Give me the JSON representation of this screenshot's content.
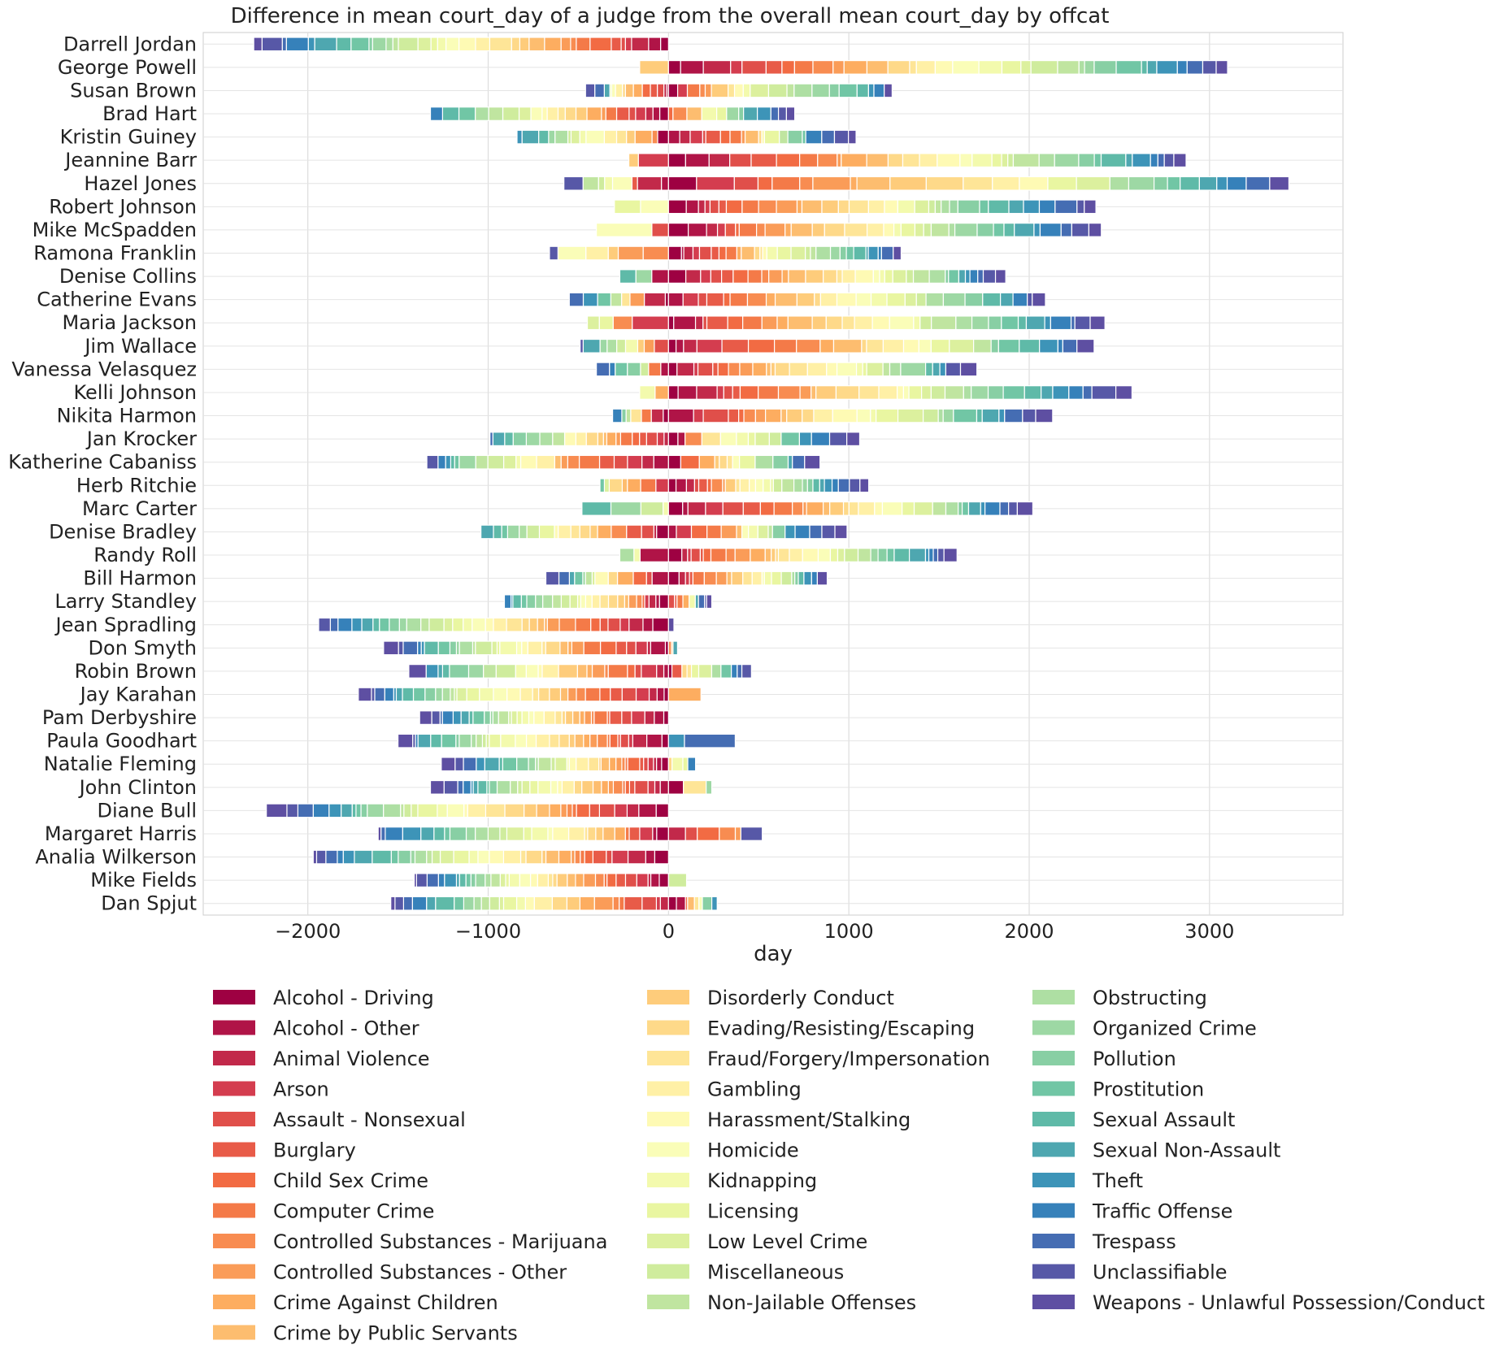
{
  "chart_data": {
    "type": "bar",
    "orientation": "horizontal",
    "stacked": "diverging",
    "title": "Difference in mean court_day of a judge from the overall mean court_day by offcat",
    "xlabel": "day",
    "ylabel": "",
    "xlim": [
      -2580,
      3740
    ],
    "xticks": [
      -2000,
      -1000,
      0,
      1000,
      2000,
      3000
    ],
    "xtick_labels": [
      "−2000",
      "−1000",
      "0",
      "1000",
      "2000",
      "3000"
    ],
    "grid": true,
    "legend_position": "bottom",
    "judges": [
      "Darrell Jordan",
      "George Powell",
      "Susan Brown",
      "Brad Hart",
      "Kristin Guiney",
      "Jeannine Barr",
      "Hazel Jones",
      "Robert Johnson",
      "Mike McSpadden",
      "Ramona Franklin",
      "Denise Collins",
      "Catherine Evans",
      "Maria Jackson",
      "Jim Wallace",
      "Vanessa Velasquez",
      "Kelli Johnson",
      "Nikita Harmon",
      "Jan Krocker",
      "Katherine Cabaniss",
      "Herb Ritchie",
      "Marc Carter",
      "Denise Bradley",
      "Randy Roll",
      "Bill Harmon",
      "Larry Standley",
      "Jean Spradling",
      "Don Smyth",
      "Robin Brown",
      "Jay Karahan",
      "Pam Derbyshire",
      "Paula Goodhart",
      "Natalie Fleming",
      "John Clinton",
      "Diane Bull",
      "Margaret Harris",
      "Analia Wilkerson",
      "Mike Fields",
      "Dan Spjut"
    ],
    "categories": [
      "Alcohol - Driving",
      "Alcohol - Other",
      "Animal Violence",
      "Arson",
      "Assault - Nonsexual",
      "Burglary",
      "Child Sex Crime",
      "Computer Crime",
      "Controlled Substances - Marijuana",
      "Controlled Substances - Other",
      "Crime Against Children",
      "Crime by Public Servants",
      "Disorderly Conduct",
      "Evading/Resisting/Escaping",
      "Fraud/Forgery/Impersonation",
      "Gambling",
      "Harassment/Stalking",
      "Homicide",
      "Kidnapping",
      "Licensing",
      "Low Level Crime",
      "Miscellaneous",
      "Non-Jailable Offenses",
      "Obstructing",
      "Organized Crime",
      "Pollution",
      "Prostitution",
      "Sexual Assault",
      "Sexual Non-Assault",
      "Theft",
      "Traffic Offense",
      "Trespass",
      "Unclassifiable",
      "Weapons - Unlawful Possession/Conduct"
    ],
    "colors": [
      "#9e0142",
      "#b01447",
      "#c2294a",
      "#d43d4f",
      "#e04f4a",
      "#e85b48",
      "#f26b43",
      "#f47a48",
      "#f88c51",
      "#fa9c58",
      "#fdad60",
      "#fdbd6f",
      "#fecc7b",
      "#fed989",
      "#fee597",
      "#fff0a6",
      "#fefab4",
      "#fafdb8",
      "#f3faad",
      "#e9f6a1",
      "#dcf09e",
      "#cfec9d",
      "#c0e5a0",
      "#aedfa3",
      "#9dd8a4",
      "#88cfa4",
      "#71c6a5",
      "#5fbaa8",
      "#4ea7b0",
      "#3d94b8",
      "#3681ba",
      "#456db3",
      "#5758a7",
      "#5e4fa2"
    ],
    "data_note": "Each judge's stacked total extent in days (negative part, positive part)",
    "series_totals": [
      {
        "judge": "Darrell Jordan",
        "neg": -2300,
        "pos": 50
      },
      {
        "judge": "George Powell",
        "neg": -160,
        "pos": 3100
      },
      {
        "judge": "Susan Brown",
        "neg": -460,
        "pos": 1240
      },
      {
        "judge": "Brad Hart",
        "neg": -1320,
        "pos": 700
      },
      {
        "judge": "Kristin Guiney",
        "neg": -840,
        "pos": 1040
      },
      {
        "judge": "Jeannine Barr",
        "neg": -220,
        "pos": 2870
      },
      {
        "judge": "Hazel Jones",
        "neg": -580,
        "pos": 3440
      },
      {
        "judge": "Robert Johnson",
        "neg": -300,
        "pos": 2370
      },
      {
        "judge": "Mike McSpadden",
        "neg": -400,
        "pos": 2400
      },
      {
        "judge": "Ramona Franklin",
        "neg": -660,
        "pos": 1290
      },
      {
        "judge": "Denise Collins",
        "neg": -270,
        "pos": 1870
      },
      {
        "judge": "Catherine Evans",
        "neg": -550,
        "pos": 2090
      },
      {
        "judge": "Maria Jackson",
        "neg": -450,
        "pos": 2420
      },
      {
        "judge": "Jim Wallace",
        "neg": -490,
        "pos": 2360
      },
      {
        "judge": "Vanessa Velasquez",
        "neg": -400,
        "pos": 1710
      },
      {
        "judge": "Kelli Johnson",
        "neg": -160,
        "pos": 2570
      },
      {
        "judge": "Nikita Harmon",
        "neg": -310,
        "pos": 2130
      },
      {
        "judge": "Jan Krocker",
        "neg": -990,
        "pos": 1060
      },
      {
        "judge": "Katherine Cabaniss",
        "neg": -1340,
        "pos": 840
      },
      {
        "judge": "Herb Ritchie",
        "neg": -380,
        "pos": 1110
      },
      {
        "judge": "Marc Carter",
        "neg": -480,
        "pos": 2020
      },
      {
        "judge": "Denise Bradley",
        "neg": -1040,
        "pos": 990
      },
      {
        "judge": "Randy Roll",
        "neg": -270,
        "pos": 1600
      },
      {
        "judge": "Bill Harmon",
        "neg": -680,
        "pos": 880
      },
      {
        "judge": "Larry Standley",
        "neg": -910,
        "pos": 240
      },
      {
        "judge": "Jean Spradling",
        "neg": -1940,
        "pos": 30
      },
      {
        "judge": "Don Smyth",
        "neg": -1580,
        "pos": 50
      },
      {
        "judge": "Robin Brown",
        "neg": -1440,
        "pos": 460
      },
      {
        "judge": "Jay Karahan",
        "neg": -1720,
        "pos": 180
      },
      {
        "judge": "Pam Derbyshire",
        "neg": -1380,
        "pos": 60
      },
      {
        "judge": "Paula Goodhart",
        "neg": -1500,
        "pos": 370
      },
      {
        "judge": "Natalie Fleming",
        "neg": -1260,
        "pos": 150
      },
      {
        "judge": "John Clinton",
        "neg": -1320,
        "pos": 240
      },
      {
        "judge": "Diane Bull",
        "neg": -2230,
        "pos": 140
      },
      {
        "judge": "Margaret Harris",
        "neg": -1610,
        "pos": 520
      },
      {
        "judge": "Analia Wilkerson",
        "neg": -1970,
        "pos": 0
      },
      {
        "judge": "Mike Fields",
        "neg": -1410,
        "pos": 100
      },
      {
        "judge": "Dan Spjut",
        "neg": -1540,
        "pos": 270
      }
    ]
  }
}
